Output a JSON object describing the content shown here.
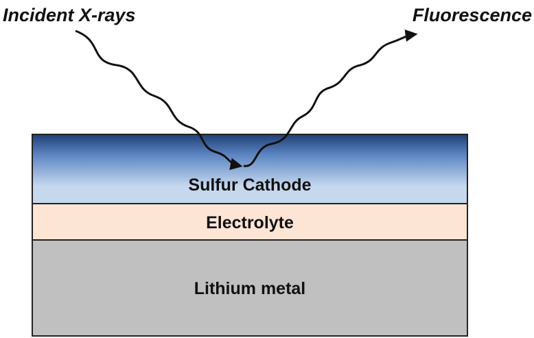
{
  "diagram": {
    "incident_label": "Incident X-rays",
    "fluorescence_label": "Fluorescence",
    "layers": [
      {
        "label": "Sulfur Cathode",
        "fill": "#c5d8ee"
      },
      {
        "label": "Electrolyte",
        "fill": "#fce5d5"
      },
      {
        "label": "Lithium metal",
        "fill": "#c0c0c0"
      }
    ],
    "cathode_gradient": [
      "#1f3f74",
      "#5d86c3",
      "#c5d8ee"
    ],
    "outline_color": "#222222",
    "arrow_color": "#111111"
  }
}
